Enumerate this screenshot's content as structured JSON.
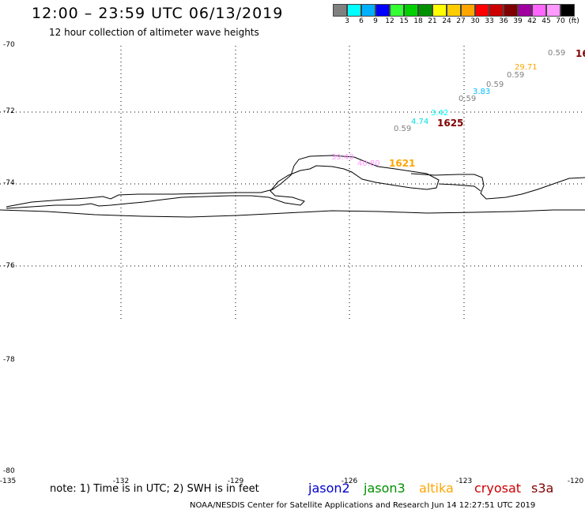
{
  "header": {
    "title": "12:00 – 23:59 UTC 06/13/2019",
    "subtitle": "12 hour collection of altimeter wave heights"
  },
  "color_scale": {
    "colors": [
      "#808080",
      "#00ffff",
      "#00b0ff",
      "#0000ff",
      "#33ff33",
      "#00d000",
      "#009000",
      "#ffff00",
      "#ffcc00",
      "#ffa500",
      "#ff0000",
      "#cc0000",
      "#800000",
      "#a000a0",
      "#ff66ff",
      "#ff99ff",
      "#000000"
    ],
    "labels": [
      "3",
      "6",
      "9",
      "12",
      "15",
      "18",
      "21",
      "24",
      "27",
      "30",
      "33",
      "36",
      "39",
      "42",
      "45",
      "70",
      "(ft)"
    ]
  },
  "axes": {
    "lat_labels": [
      "-70",
      "-72",
      "-74",
      "-76",
      "-78",
      "-80"
    ],
    "lon_labels": [
      "-135",
      "-132",
      "-129",
      "-126",
      "-123",
      "-120"
    ]
  },
  "observations": [
    {
      "text": "0.59",
      "color": "#808080"
    },
    {
      "text": "16",
      "color": "#800000"
    },
    {
      "text": "29.71",
      "color": "#ffa500"
    },
    {
      "text": "0.59",
      "color": "#808080"
    },
    {
      "text": "0.59",
      "color": "#808080"
    },
    {
      "text": "3.83",
      "color": "#00c0ff"
    },
    {
      "text": "0.59",
      "color": "#808080"
    },
    {
      "text": "3.42",
      "color": "#00ffff"
    },
    {
      "text": "4.74",
      "color": "#00e0e0"
    },
    {
      "text": "1625",
      "color": "#800000"
    },
    {
      "text": "0.59",
      "color": "#808080"
    },
    {
      "text": "39.40",
      "color": "#ff99ff"
    },
    {
      "text": "40.80",
      "color": "#ff99ff"
    },
    {
      "text": "1621",
      "color": "#ffa500"
    }
  ],
  "footer": {
    "note": "note: 1) Time is in UTC; 2) SWH is in feet",
    "satellites": [
      {
        "name": "jason2",
        "color": "#0000cc"
      },
      {
        "name": "jason3",
        "color": "#009000"
      },
      {
        "name": "altika",
        "color": "#ffa500"
      },
      {
        "name": "cryosat",
        "color": "#cc0000"
      },
      {
        "name": "s3a",
        "color": "#800000"
      }
    ],
    "credit": "NOAA/NESDIS Center for Satellite Applications and Research   Jun 14 12:27:51 UTC 2019"
  }
}
